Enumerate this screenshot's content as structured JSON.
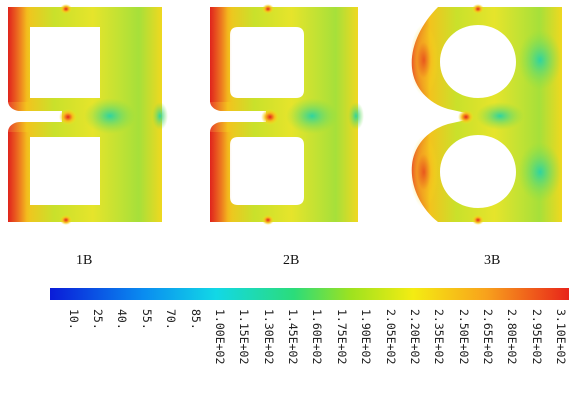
{
  "panels": [
    {
      "label": "1B"
    },
    {
      "label": "2B"
    },
    {
      "label": "3B"
    }
  ],
  "colorbar": {
    "ticks": [
      "10.",
      "25.",
      "40.",
      "55.",
      "70.",
      "85.",
      "1.00E+02",
      "1.15E+02",
      "1.30E+02",
      "1.45E+02",
      "1.60E+02",
      "1.75E+02",
      "1.90E+02",
      "2.05E+02",
      "2.20E+02",
      "2.35E+02",
      "2.50E+02",
      "2.65E+02",
      "2.80E+02",
      "2.95E+02",
      "3.10E+02"
    ],
    "colors": [
      "#0a1bd8",
      "#0a8cf0",
      "#12d8e6",
      "#2bdc7a",
      "#9ee21f",
      "#f4ec12",
      "#f8a21c",
      "#e8241a"
    ]
  }
}
